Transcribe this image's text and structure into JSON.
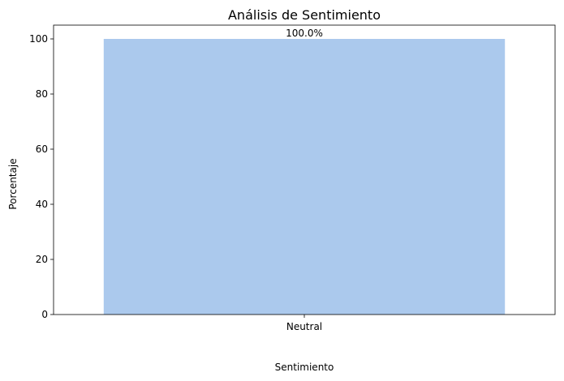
{
  "chart_data": {
    "type": "bar",
    "title": "Análisis de Sentimiento",
    "xlabel": "Sentimiento",
    "ylabel": "Porcentaje",
    "categories": [
      "Neutral"
    ],
    "values": [
      100.0
    ],
    "data_labels": [
      "100.0%"
    ],
    "ylim": [
      0,
      105
    ],
    "yticks": [
      0,
      20,
      40,
      60,
      80,
      100
    ],
    "grid": false,
    "colors": {
      "bar": "#abc9ed"
    }
  }
}
